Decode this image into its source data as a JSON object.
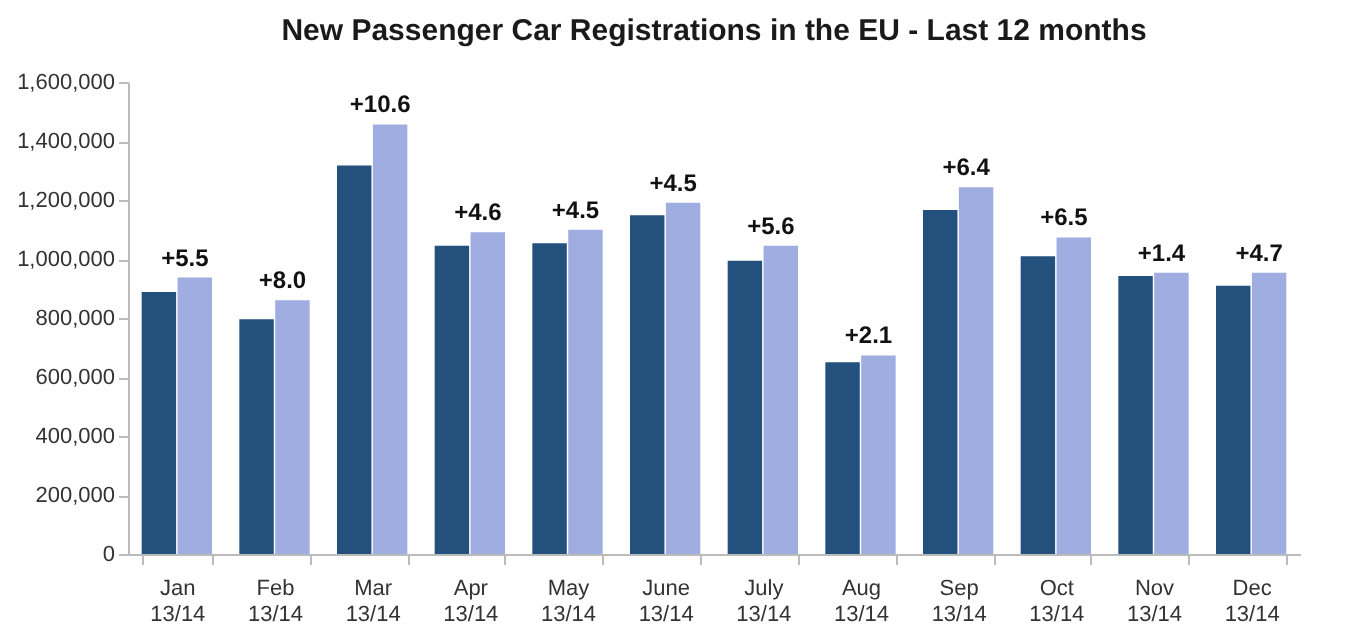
{
  "chart_data": {
    "type": "bar",
    "title": "New Passenger Car Registrations in the EU - Last 12 months",
    "categories": [
      "Jan 13/14",
      "Feb 13/14",
      "Mar 13/14",
      "Apr 13/14",
      "May 13/14",
      "June 13/14",
      "July 13/14",
      "Aug 13/14",
      "Sep 13/14",
      "Oct 13/14",
      "Nov 13/14",
      "Dec 13/14"
    ],
    "series": [
      {
        "color": "#24507e",
        "values": [
          888000,
          796000,
          1317000,
          1045000,
          1053000,
          1148000,
          994000,
          650000,
          1166000,
          1009000,
          942000,
          909000
        ]
      },
      {
        "color": "#9fade0",
        "values": [
          937000,
          860000,
          1456000,
          1091000,
          1099000,
          1191000,
          1045000,
          673000,
          1243000,
          1073000,
          953000,
          953000
        ]
      }
    ],
    "ylim": [
      0,
      1600000
    ],
    "yticks": [
      {
        "value": 0,
        "label": "0"
      },
      {
        "value": 200000,
        "label": "200,000"
      },
      {
        "value": 400000,
        "label": "400,000"
      },
      {
        "value": 600000,
        "label": "600,000"
      },
      {
        "value": 800000,
        "label": "800,000"
      },
      {
        "value": 1000000,
        "label": "1,000,000"
      },
      {
        "value": 1200000,
        "label": "1,200,000"
      },
      {
        "value": 1400000,
        "label": "1,400,000"
      },
      {
        "value": 1600000,
        "label": "1,600,000"
      }
    ],
    "grid": false,
    "legend": false,
    "annotations": [
      {
        "text": "+5.5",
        "x": "Jan 13/14",
        "y": 937000
      },
      {
        "text": "+8.0",
        "x": "Feb 13/14",
        "y": 860000
      },
      {
        "text": "+10.6",
        "x": "Mar 13/14",
        "y": 1456000
      },
      {
        "text": "+4.6",
        "x": "Apr 13/14",
        "y": 1091000
      },
      {
        "text": "+4.5",
        "x": "May 13/14",
        "y": 1099000
      },
      {
        "text": "+4.5",
        "x": "June 13/14",
        "y": 1191000
      },
      {
        "text": "+5.6",
        "x": "July 13/14",
        "y": 1045000
      },
      {
        "text": "+2.1",
        "x": "Aug 13/14",
        "y": 673000
      },
      {
        "text": "+6.4",
        "x": "Sep 13/14",
        "y": 1243000
      },
      {
        "text": "+6.5",
        "x": "Oct 13/14",
        "y": 1073000
      },
      {
        "text": "+1.4",
        "x": "Nov 13/14",
        "y": 953000
      },
      {
        "text": "+4.7",
        "x": "Dec 13/14",
        "y": 953000
      }
    ]
  }
}
